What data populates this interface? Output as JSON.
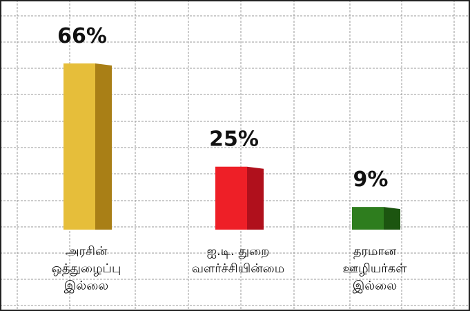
{
  "chart_data": {
    "type": "bar",
    "style": "3d-bars",
    "grid": true,
    "grid_style": "dashed",
    "categories": [
      [
        "அரசின்",
        "ஒத்துழைப்பு",
        "இல்லை"
      ],
      [
        "ஐ.டி. துறை",
        "வளர்ச்சியின்மை"
      ],
      [
        "தரமான",
        "ஊழியர்கள்",
        "இல்லை"
      ]
    ],
    "values": [
      66,
      25,
      9
    ],
    "data_labels": [
      "66%",
      "25%",
      "9%"
    ],
    "colors": [
      "#E6BE3A",
      "#EE1F27",
      "#2E7D1E"
    ],
    "shade_colors": [
      "#A97F16",
      "#B0101C",
      "#1C5510"
    ],
    "ylim": [
      0,
      66
    ]
  }
}
